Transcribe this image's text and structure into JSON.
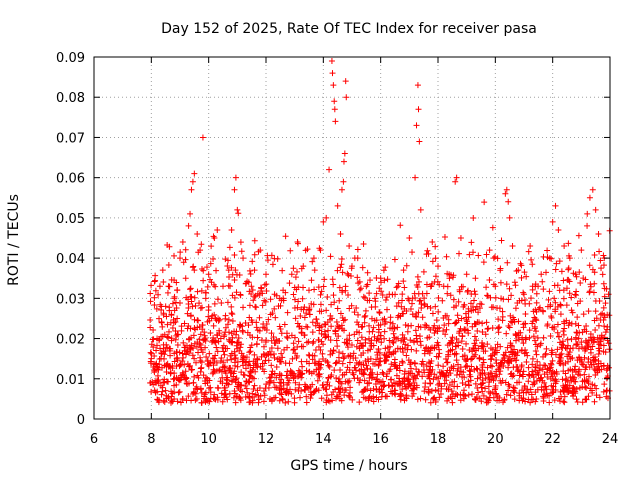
{
  "chart_data": {
    "type": "scatter",
    "title": "Day 152 of 2025, Rate Of TEC Index for receiver pasa",
    "xlabel": "GPS time / hours",
    "ylabel": "ROTI / TECUs",
    "xlim": [
      6,
      24
    ],
    "ylim": [
      0,
      0.09
    ],
    "xticks": [
      6,
      8,
      10,
      12,
      14,
      16,
      18,
      20,
      22,
      24
    ],
    "yticks": [
      0,
      0.01,
      0.02,
      0.03,
      0.04,
      0.05,
      0.06,
      0.07,
      0.08,
      0.09
    ],
    "xtick_labels": [
      "6",
      "8",
      "10",
      "12",
      "14",
      "16",
      "18",
      "20",
      "22",
      "24"
    ],
    "ytick_labels": [
      "0",
      "0.01",
      "0.02",
      "0.03",
      "0.04",
      "0.05",
      "0.06",
      "0.07",
      "0.08",
      "0.09"
    ],
    "grid": true,
    "marker": "+",
    "series_color": "#ff0000",
    "observation_window_hours": [
      7.95,
      24.0
    ],
    "typical_roti_range": [
      0.004,
      0.03
    ],
    "points": [
      [
        8.0,
        0.015
      ],
      [
        8.1,
        0.012
      ],
      [
        8.2,
        0.02
      ],
      [
        8.3,
        0.033
      ],
      [
        8.4,
        0.037
      ],
      [
        8.5,
        0.028
      ],
      [
        8.6,
        0.033
      ],
      [
        8.7,
        0.026
      ],
      [
        8.8,
        0.03
      ],
      [
        8.9,
        0.032
      ],
      [
        9.0,
        0.04
      ],
      [
        9.1,
        0.044
      ],
      [
        9.2,
        0.035
      ],
      [
        9.3,
        0.048
      ],
      [
        9.35,
        0.051
      ],
      [
        9.4,
        0.057
      ],
      [
        9.45,
        0.059
      ],
      [
        9.5,
        0.061
      ],
      [
        9.6,
        0.046
      ],
      [
        9.7,
        0.042
      ],
      [
        9.8,
        0.07
      ],
      [
        9.9,
        0.03
      ],
      [
        10.0,
        0.036
      ],
      [
        10.1,
        0.034
      ],
      [
        10.2,
        0.045
      ],
      [
        10.3,
        0.047
      ],
      [
        10.5,
        0.033
      ],
      [
        10.7,
        0.037
      ],
      [
        10.8,
        0.047
      ],
      [
        10.9,
        0.057
      ],
      [
        10.95,
        0.06
      ],
      [
        11.0,
        0.052
      ],
      [
        11.2,
        0.04
      ],
      [
        11.4,
        0.034
      ],
      [
        11.6,
        0.037
      ],
      [
        11.8,
        0.042
      ],
      [
        12.0,
        0.036
      ],
      [
        12.3,
        0.031
      ],
      [
        12.6,
        0.03
      ],
      [
        12.9,
        0.036
      ],
      [
        13.1,
        0.044
      ],
      [
        13.3,
        0.038
      ],
      [
        13.5,
        0.032
      ],
      [
        13.7,
        0.037
      ],
      [
        13.9,
        0.042
      ],
      [
        14.0,
        0.049
      ],
      [
        14.1,
        0.05
      ],
      [
        14.2,
        0.062
      ],
      [
        14.3,
        0.089
      ],
      [
        14.32,
        0.086
      ],
      [
        14.35,
        0.083
      ],
      [
        14.38,
        0.079
      ],
      [
        14.4,
        0.077
      ],
      [
        14.42,
        0.074
      ],
      [
        14.5,
        0.053
      ],
      [
        14.6,
        0.046
      ],
      [
        14.65,
        0.057
      ],
      [
        14.7,
        0.059
      ],
      [
        14.72,
        0.064
      ],
      [
        14.75,
        0.066
      ],
      [
        14.78,
        0.084
      ],
      [
        14.8,
        0.08
      ],
      [
        14.9,
        0.043
      ],
      [
        15.0,
        0.038
      ],
      [
        15.2,
        0.04
      ],
      [
        15.5,
        0.033
      ],
      [
        15.8,
        0.03
      ],
      [
        16.0,
        0.035
      ],
      [
        16.3,
        0.031
      ],
      [
        16.6,
        0.033
      ],
      [
        16.8,
        0.037
      ],
      [
        17.0,
        0.045
      ],
      [
        17.2,
        0.06
      ],
      [
        17.25,
        0.073
      ],
      [
        17.3,
        0.083
      ],
      [
        17.32,
        0.077
      ],
      [
        17.35,
        0.069
      ],
      [
        17.4,
        0.052
      ],
      [
        17.6,
        0.041
      ],
      [
        17.8,
        0.044
      ],
      [
        18.0,
        0.038
      ],
      [
        18.2,
        0.033
      ],
      [
        18.4,
        0.035
      ],
      [
        18.6,
        0.059
      ],
      [
        18.65,
        0.06
      ],
      [
        18.8,
        0.045
      ],
      [
        19.0,
        0.036
      ],
      [
        19.3,
        0.031
      ],
      [
        19.6,
        0.039
      ],
      [
        19.8,
        0.042
      ],
      [
        20.0,
        0.033
      ],
      [
        20.2,
        0.03
      ],
      [
        20.35,
        0.056
      ],
      [
        20.4,
        0.057
      ],
      [
        20.45,
        0.054
      ],
      [
        20.5,
        0.05
      ],
      [
        20.6,
        0.043
      ],
      [
        20.8,
        0.037
      ],
      [
        21.0,
        0.031
      ],
      [
        21.3,
        0.033
      ],
      [
        21.6,
        0.036
      ],
      [
        21.9,
        0.04
      ],
      [
        22.0,
        0.049
      ],
      [
        22.1,
        0.053
      ],
      [
        22.2,
        0.047
      ],
      [
        22.4,
        0.043
      ],
      [
        22.6,
        0.04
      ],
      [
        22.8,
        0.036
      ],
      [
        23.0,
        0.042
      ],
      [
        23.2,
        0.048
      ],
      [
        23.3,
        0.055
      ],
      [
        23.4,
        0.057
      ],
      [
        23.5,
        0.052
      ],
      [
        23.6,
        0.046
      ],
      [
        23.8,
        0.04
      ],
      [
        23.95,
        0.031
      ]
    ]
  }
}
